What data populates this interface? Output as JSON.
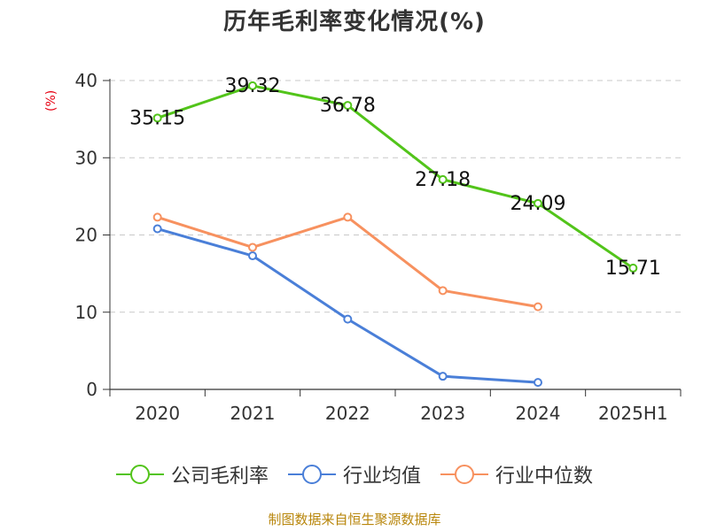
{
  "chart_data": {
    "type": "line",
    "title": "历年毛利率变化情况(%)",
    "unit_label": "(%)",
    "categories": [
      "2020",
      "2021",
      "2022",
      "2023",
      "2024",
      "2025H1"
    ],
    "ylim": [
      0,
      40
    ],
    "yticks": [
      0,
      10,
      20,
      30,
      40
    ],
    "grid": true,
    "legend_position": "bottom",
    "series": [
      {
        "name": "公司毛利率",
        "color": "#52c41a",
        "show_labels": true,
        "values": [
          35.15,
          39.32,
          36.78,
          27.18,
          24.09,
          15.71
        ]
      },
      {
        "name": "行业均值",
        "color": "#4a7fd8",
        "show_labels": false,
        "values": [
          20.8,
          17.3,
          9.1,
          1.7,
          0.9,
          null
        ]
      },
      {
        "name": "行业中位数",
        "color": "#f7915f",
        "show_labels": false,
        "values": [
          22.3,
          18.4,
          22.3,
          12.8,
          10.7,
          null
        ]
      }
    ]
  },
  "source": "制图数据来自恒生聚源数据库"
}
